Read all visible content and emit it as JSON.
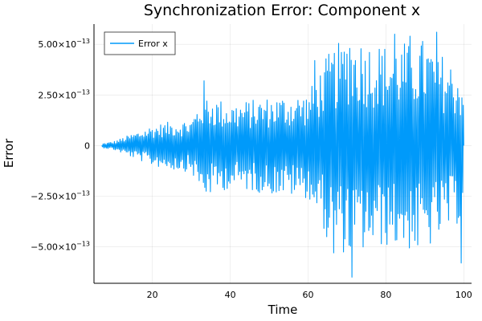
{
  "chart_data": {
    "type": "line",
    "title": "Synchronization Error: Component x",
    "xlabel": "Time",
    "ylabel": "Error",
    "xlim": [
      5,
      102
    ],
    "ylim": [
      -6.8e-13,
      6e-13
    ],
    "grid": true,
    "legend_position": "top-left",
    "x_ticks": [
      {
        "value": 20,
        "label": "20"
      },
      {
        "value": 40,
        "label": "40"
      },
      {
        "value": 60,
        "label": "60"
      },
      {
        "value": 80,
        "label": "80"
      },
      {
        "value": 100,
        "label": "100"
      }
    ],
    "y_ticks": [
      {
        "value": 5e-13,
        "mant": "5.00×10",
        "exp": "−13"
      },
      {
        "value": 2.5e-13,
        "mant": "2.50×10",
        "exp": "−13"
      },
      {
        "value": 0,
        "mant": "0",
        "exp": ""
      },
      {
        "value": -2.5e-13,
        "mant": "−2.50×10",
        "exp": "−13"
      },
      {
        "value": -5e-13,
        "mant": "−5.00×10",
        "exp": "−13"
      }
    ],
    "series": [
      {
        "name": "Error x",
        "color": "#009AFA",
        "envelope_samples": [
          {
            "t": 7,
            "amp": 1e-14
          },
          {
            "t": 10,
            "amp": 2e-14
          },
          {
            "t": 15,
            "amp": 6e-14
          },
          {
            "t": 20,
            "amp": 1e-13
          },
          {
            "t": 25,
            "amp": 1.2e-13
          },
          {
            "t": 30,
            "amp": 1.3e-13
          },
          {
            "t": 33,
            "amp": 2.6e-13
          },
          {
            "t": 40,
            "amp": 2.1e-13
          },
          {
            "t": 50,
            "amp": 2.4e-13
          },
          {
            "t": 60,
            "amp": 2.6e-13
          },
          {
            "t": 65,
            "amp": 4.5e-13
          },
          {
            "t": 70,
            "amp": 5.5e-13
          },
          {
            "t": 80,
            "amp": 5e-13
          },
          {
            "t": 90,
            "amp": 5.3e-13
          },
          {
            "t": 100,
            "amp": 3.6e-13
          }
        ],
        "peaks": [
          {
            "t": 33.1,
            "v": 3.2e-13
          },
          {
            "t": 61.8,
            "v": 4.2e-13
          },
          {
            "t": 64.1,
            "v": 3.6e-13
          },
          {
            "t": 64.6,
            "v": -4.5e-13
          },
          {
            "t": 66.3,
            "v": 4e-13
          },
          {
            "t": 66.7,
            "v": -5.3e-13
          },
          {
            "t": 68.4,
            "v": 4.6e-13
          },
          {
            "t": 70.9,
            "v": 4.8e-13
          },
          {
            "t": 71.3,
            "v": -6.5e-13
          },
          {
            "t": 82.3,
            "v": 5.5e-13
          },
          {
            "t": 86.1,
            "v": 5.4e-13
          },
          {
            "t": 88.3,
            "v": -4.9e-13
          },
          {
            "t": 93.2,
            "v": 5.6e-13
          },
          {
            "t": 99.2,
            "v": -5.8e-13
          }
        ]
      }
    ]
  }
}
